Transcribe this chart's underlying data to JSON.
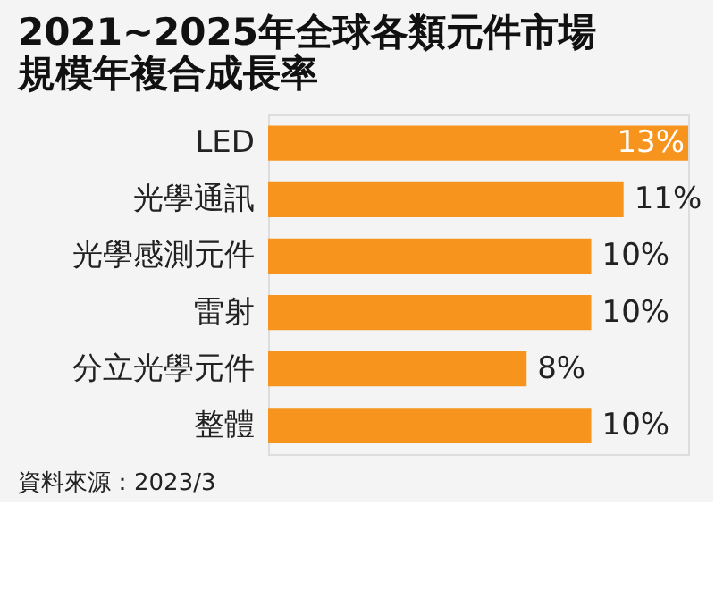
{
  "chart_data": {
    "type": "bar",
    "orientation": "horizontal",
    "title": "2021~2025年全球各類元件市場規模年複合成長率",
    "categories": [
      "LED",
      "光學通訊",
      "光學感測元件",
      "雷射",
      "分立光學元件",
      "整體"
    ],
    "values": [
      13,
      11,
      10,
      10,
      8,
      10
    ],
    "value_labels": [
      "13%",
      "11%",
      "10%",
      "10%",
      "8%",
      "10%"
    ],
    "color": "#f7941d",
    "grid": false,
    "annotations": [
      "資料來源：2023/3"
    ]
  }
}
